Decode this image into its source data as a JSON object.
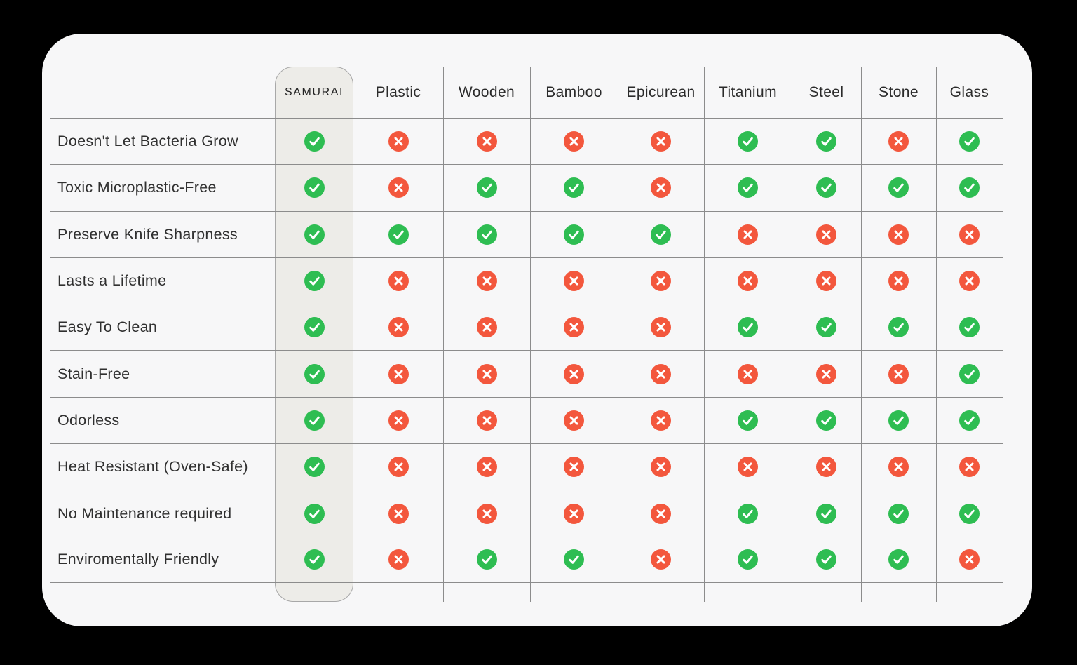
{
  "table": {
    "columns": [
      "SAMURAI",
      "Plastic",
      "Wooden",
      "Bamboo",
      "Epicurean",
      "Titanium",
      "Steel",
      "Stone",
      "Glass"
    ],
    "rows": [
      {
        "label": "Doesn't Let Bacteria Grow",
        "values": [
          true,
          false,
          false,
          false,
          false,
          true,
          true,
          false,
          true
        ]
      },
      {
        "label": "Toxic Microplastic-Free",
        "values": [
          true,
          false,
          true,
          true,
          false,
          true,
          true,
          true,
          true
        ]
      },
      {
        "label": "Preserve Knife Sharpness",
        "values": [
          true,
          true,
          true,
          true,
          true,
          false,
          false,
          false,
          false
        ]
      },
      {
        "label": "Lasts a Lifetime",
        "values": [
          true,
          false,
          false,
          false,
          false,
          false,
          false,
          false,
          false
        ]
      },
      {
        "label": "Easy To Clean",
        "values": [
          true,
          false,
          false,
          false,
          false,
          true,
          true,
          true,
          true
        ]
      },
      {
        "label": "Stain-Free",
        "values": [
          true,
          false,
          false,
          false,
          false,
          false,
          false,
          false,
          true
        ]
      },
      {
        "label": "Odorless",
        "values": [
          true,
          false,
          false,
          false,
          false,
          true,
          true,
          true,
          true
        ]
      },
      {
        "label": "Heat Resistant (Oven-Safe)",
        "values": [
          true,
          false,
          false,
          false,
          false,
          false,
          false,
          false,
          false
        ]
      },
      {
        "label": "No Maintenance required",
        "values": [
          true,
          false,
          false,
          false,
          false,
          true,
          true,
          true,
          true
        ]
      },
      {
        "label": "Enviromentally Friendly",
        "values": [
          true,
          false,
          true,
          true,
          false,
          true,
          true,
          true,
          false
        ]
      }
    ]
  },
  "colors": {
    "check": "#2ebd52",
    "cross": "#f3573d",
    "glyph": "#ffffff",
    "card_bg": "#f7f7f8",
    "page_bg": "#000000",
    "pill_bg": "#edece8",
    "line": "#8c8c8c"
  },
  "layout_hints": {
    "vline_offsets": [
      560,
      684,
      809,
      932,
      1057,
      1156,
      1263
    ]
  }
}
